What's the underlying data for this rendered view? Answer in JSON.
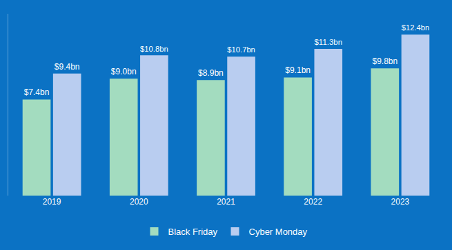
{
  "chart_data": {
    "type": "bar",
    "categories": [
      "2019",
      "2020",
      "2021",
      "2022",
      "2023"
    ],
    "series": [
      {
        "name": "Black Friday",
        "color": "#a3dcbf",
        "values": [
          7.4,
          9.0,
          8.9,
          9.1,
          9.8
        ],
        "value_labels": [
          "$7.4bn",
          "$9.0bn",
          "$8.9bn",
          "$9.1bn",
          "$9.8bn"
        ]
      },
      {
        "name": "Cyber Monday",
        "color": "#b9cdf0",
        "values": [
          9.4,
          10.8,
          10.7,
          11.3,
          12.4
        ],
        "value_labels": [
          "$9.4bn",
          "$10.8bn",
          "$10.7bn",
          "$11.3bn",
          "$12.4bn"
        ]
      }
    ],
    "ylim": [
      0,
      14
    ],
    "yticks": [],
    "grid": false,
    "legend": "bottom",
    "data_labels": true,
    "tick_labels": "x"
  }
}
